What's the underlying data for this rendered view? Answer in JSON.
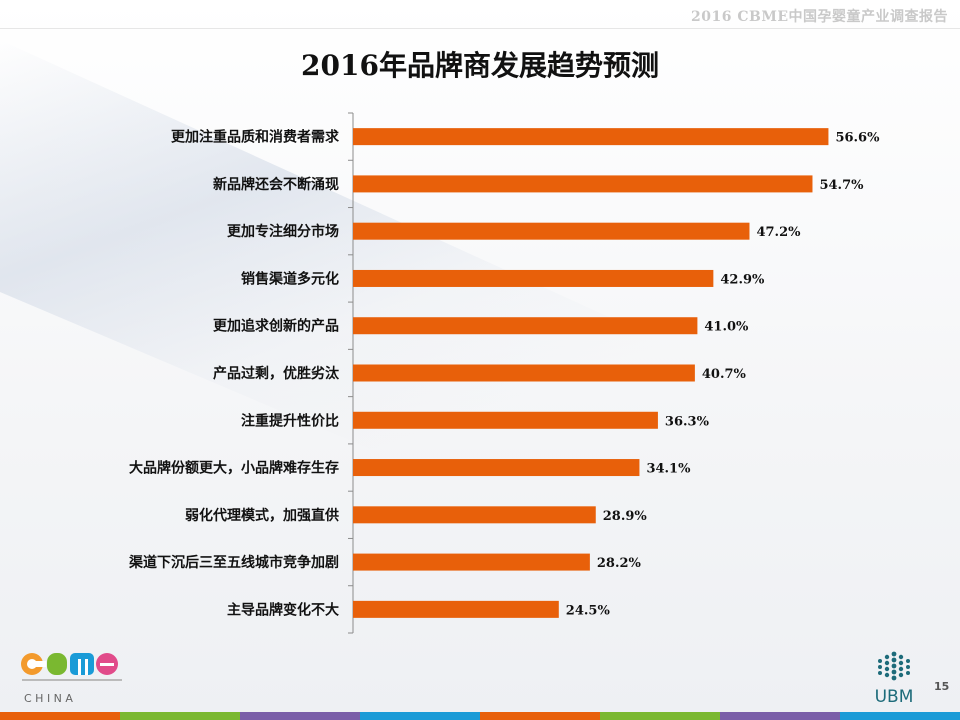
{
  "header": {
    "caption": "2016 CBME中国孕婴童产业调查报告"
  },
  "page_number": "15",
  "logos": {
    "cbme": {
      "name": "CBME",
      "sub": "C H I N A"
    },
    "ubm": {
      "name": "UBM"
    }
  },
  "colors": {
    "bar": "#e8600a",
    "axis": "#8c8c8c",
    "footer": [
      "#e8600a",
      "#7ab830",
      "#7a5ea8",
      "#1a9bd7",
      "#e8600a",
      "#7ab830",
      "#7a5ea8",
      "#1a9bd7"
    ]
  },
  "chart_data": {
    "type": "bar",
    "orientation": "horizontal",
    "title": "2016年品牌商发展趋势预测",
    "categories": [
      "更加注重品质和消费者需求",
      "新品牌还会不断涌现",
      "更加专注细分市场",
      "销售渠道多元化",
      "更加追求创新的产品",
      "产品过剩，优胜劣汰",
      "注重提升性价比",
      "大品牌份额更大，小品牌难存生存",
      "弱化代理模式，加强直供",
      "渠道下沉后三至五线城市竞争加剧",
      "主导品牌变化不大"
    ],
    "values": [
      56.6,
      54.7,
      47.2,
      42.9,
      41.0,
      40.7,
      36.3,
      34.1,
      28.9,
      28.2,
      24.5
    ],
    "value_labels": [
      "56.6%",
      "54.7%",
      "47.2%",
      "42.9%",
      "41.0%",
      "40.7%",
      "36.3%",
      "34.1%",
      "28.9%",
      "28.2%",
      "24.5%"
    ],
    "unit": "%",
    "xlim": [
      0,
      60
    ],
    "grid": false,
    "legend": "none"
  }
}
